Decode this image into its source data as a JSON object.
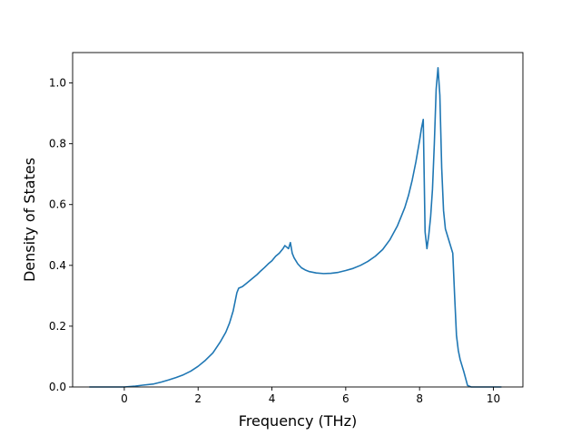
{
  "chart_data": {
    "type": "line",
    "title": "",
    "xlabel": "Frequency (THz)",
    "ylabel": "Density of States",
    "xlim": [
      -1.4,
      10.8
    ],
    "ylim": [
      0.0,
      1.1
    ],
    "xticks": [
      0,
      2,
      4,
      6,
      8,
      10
    ],
    "yticks": [
      0.0,
      0.2,
      0.4,
      0.6,
      0.8,
      1.0
    ],
    "xtick_labels": [
      "0",
      "2",
      "4",
      "6",
      "8",
      "10"
    ],
    "ytick_labels": [
      "0.0",
      "0.2",
      "0.4",
      "0.6",
      "0.8",
      "1.0"
    ],
    "grid": false,
    "legend": "none",
    "colors": {
      "line": "#1f77b4",
      "axes": "#000000"
    },
    "series": [
      {
        "x": [
          -0.95,
          -0.5,
          0.0,
          0.3,
          0.5,
          0.8,
          1.0,
          1.2,
          1.4,
          1.6,
          1.8,
          2.0,
          2.2,
          2.4,
          2.6,
          2.75,
          2.85,
          2.95,
          3.0,
          3.05,
          3.1,
          3.2,
          3.3,
          3.4,
          3.5,
          3.6,
          3.7,
          3.8,
          3.9,
          4.0,
          4.1,
          4.2,
          4.3,
          4.35,
          4.4,
          4.45,
          4.5,
          4.55,
          4.6,
          4.7,
          4.8,
          4.9,
          5.0,
          5.2,
          5.4,
          5.6,
          5.8,
          6.0,
          6.2,
          6.4,
          6.6,
          6.8,
          7.0,
          7.2,
          7.4,
          7.5,
          7.6,
          7.7,
          7.8,
          7.9,
          8.0,
          8.05,
          8.1,
          8.15,
          8.2,
          8.25,
          8.3,
          8.35,
          8.4,
          8.45,
          8.5,
          8.55,
          8.6,
          8.65,
          8.7,
          8.8,
          8.9,
          8.95,
          9.0,
          9.05,
          9.1,
          9.2,
          9.3,
          9.4,
          9.6,
          9.8,
          10.0,
          10.22
        ],
        "y": [
          0.0,
          0.0,
          0.0,
          0.003,
          0.006,
          0.01,
          0.016,
          0.023,
          0.031,
          0.04,
          0.052,
          0.068,
          0.088,
          0.112,
          0.148,
          0.18,
          0.21,
          0.25,
          0.28,
          0.31,
          0.325,
          0.33,
          0.34,
          0.35,
          0.36,
          0.37,
          0.382,
          0.393,
          0.405,
          0.415,
          0.43,
          0.44,
          0.455,
          0.465,
          0.46,
          0.455,
          0.475,
          0.44,
          0.425,
          0.405,
          0.392,
          0.385,
          0.38,
          0.375,
          0.373,
          0.374,
          0.377,
          0.383,
          0.39,
          0.4,
          0.413,
          0.43,
          0.452,
          0.485,
          0.53,
          0.56,
          0.59,
          0.63,
          0.68,
          0.74,
          0.81,
          0.85,
          0.88,
          0.51,
          0.455,
          0.5,
          0.56,
          0.65,
          0.8,
          0.98,
          1.05,
          0.96,
          0.72,
          0.58,
          0.52,
          0.48,
          0.44,
          0.3,
          0.17,
          0.12,
          0.09,
          0.05,
          0.005,
          0.0,
          0.0,
          0.0,
          0.0,
          0.0
        ]
      }
    ]
  }
}
